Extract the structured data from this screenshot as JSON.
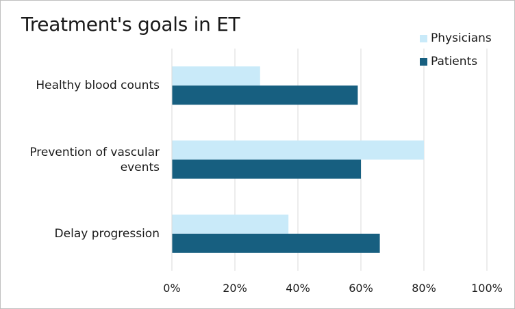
{
  "chart_data": {
    "type": "bar",
    "orientation": "horizontal",
    "title": "Treatment's goals in ET",
    "xlabel": "",
    "ylabel": "",
    "categories": [
      "Healthy blood counts",
      "Prevention of vascular events",
      "Delay progression"
    ],
    "series": [
      {
        "name": "Physicians",
        "color": "#c9eaf9",
        "values": [
          28,
          80,
          37
        ]
      },
      {
        "name": "Patients",
        "color": "#175f80",
        "values": [
          59,
          60,
          66
        ]
      }
    ],
    "xlim": [
      0,
      100
    ],
    "xticks": [
      "0%",
      "20%",
      "40%",
      "60%",
      "80%",
      "100%"
    ],
    "grid": true,
    "legend_position": "top-right"
  }
}
